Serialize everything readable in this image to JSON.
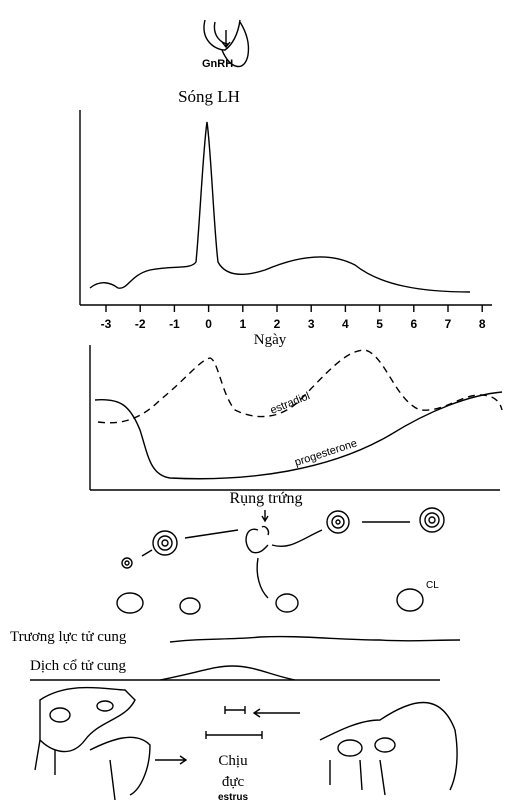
{
  "gnrh_label": "GnRH",
  "lh_title": "Sóng LH",
  "axis": {
    "ticks": [
      "-3",
      "-2",
      "-1",
      "0",
      "1",
      "2",
      "3",
      "4",
      "5",
      "6",
      "7",
      "8"
    ],
    "label": "Ngày"
  },
  "hormones": {
    "curves": [
      "estradiol",
      "progesterone"
    ]
  },
  "ovulation": {
    "label": "Rụng trứng",
    "cl_label": "CL"
  },
  "uterus": {
    "tone_label": "Trương lực tử cung",
    "mucus_label": "Dịch cổ tử cung"
  },
  "estrus": {
    "label": "Chịu",
    "label2": "đực",
    "sublabel": "estrus"
  }
}
